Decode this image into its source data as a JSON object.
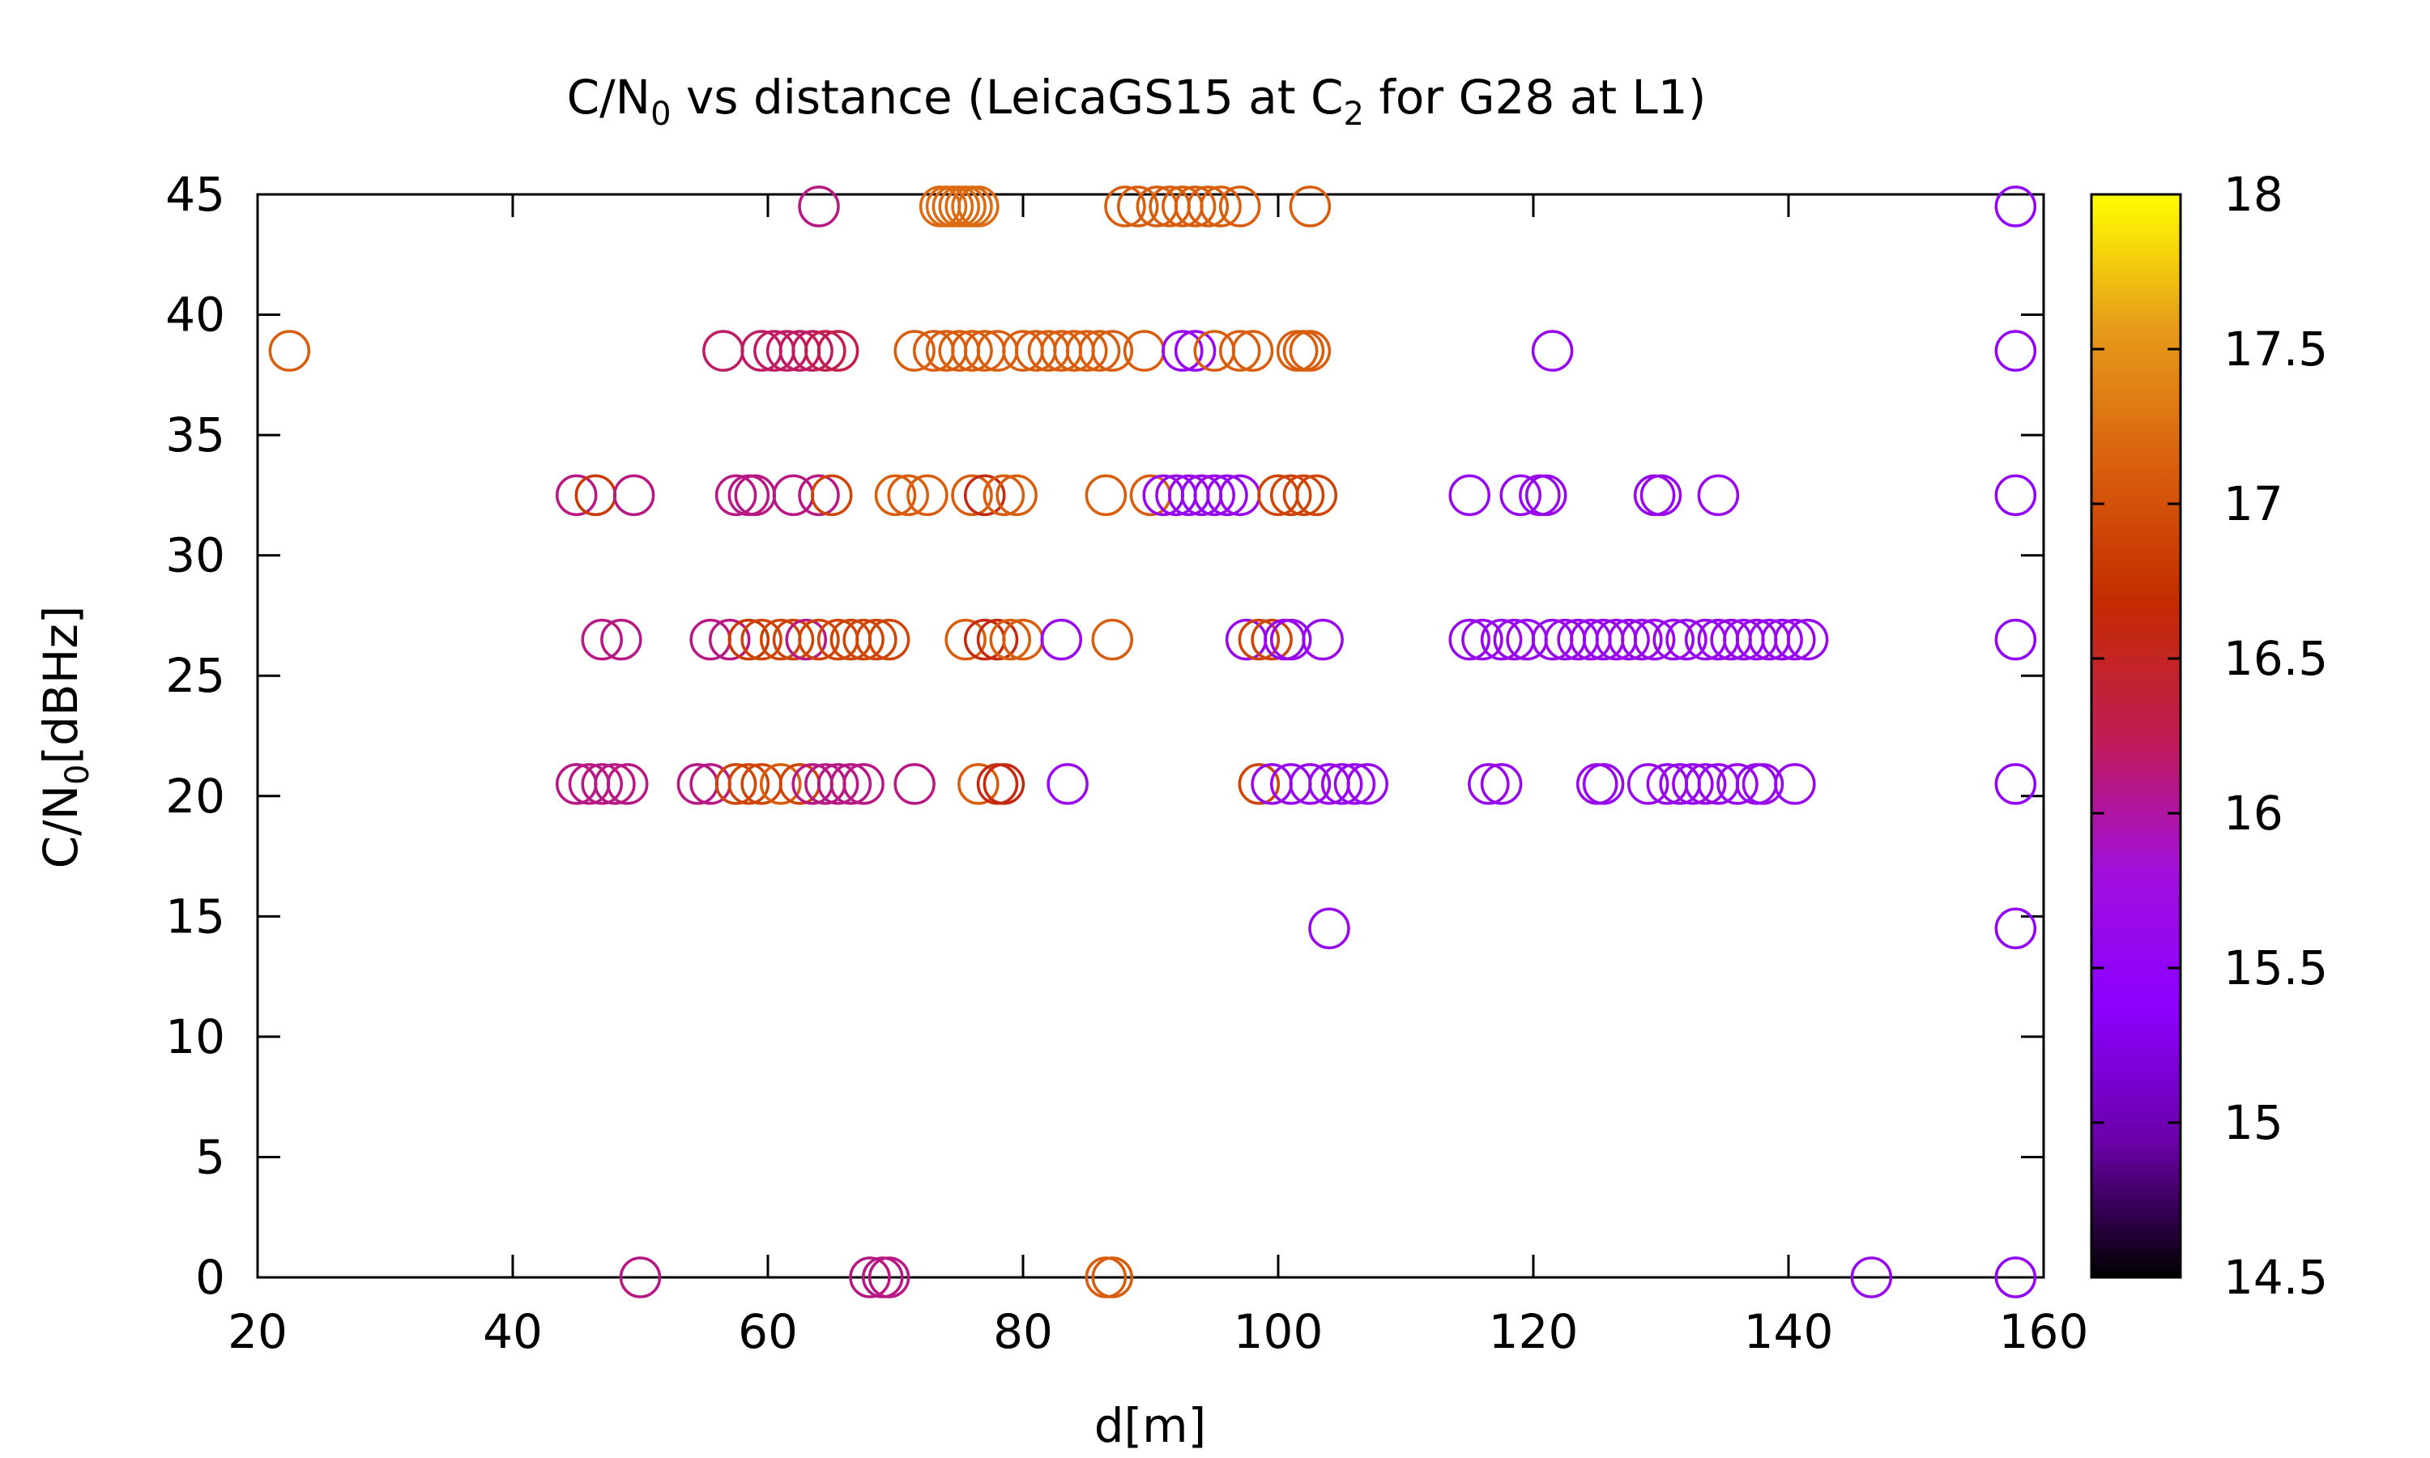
{
  "chart_data": {
    "type": "scatter",
    "title": {
      "prefix": "C/N",
      "sub1": "0",
      "middle": " vs distance (LeicaGS15 at C",
      "sub2": "2",
      "suffix": " for G28 at L1)"
    },
    "xlabel": "d[m]",
    "ylabel": {
      "prefix": "C/N",
      "sub": "0",
      "suffix": "[dBHz]"
    },
    "xlim": [
      20,
      160
    ],
    "ylim": [
      0,
      45
    ],
    "xticks": [
      20,
      40,
      60,
      80,
      100,
      120,
      140,
      160
    ],
    "yticks": [
      0,
      5,
      10,
      15,
      20,
      25,
      30,
      35,
      40,
      45
    ],
    "marker": "open-circle",
    "grid": false,
    "colorbar": {
      "range": [
        14.5,
        18
      ],
      "ticks": [
        "14.5",
        "15",
        "15.5",
        "16",
        "16.5",
        "17",
        "17.5",
        "18"
      ],
      "colormap": [
        "#000000",
        "#6a00a8",
        "#8c00ff",
        "#a10fdc",
        "#c31c54",
        "#c42c00",
        "#d9600e",
        "#e69a1a",
        "#ffff00"
      ]
    },
    "points": [
      {
        "x": 22.5,
        "y": 38.5,
        "c": 17.1
      },
      {
        "x": 64,
        "y": 44.5,
        "c": 16.1
      },
      {
        "x": 73.5,
        "y": 44.5,
        "c": 17.2
      },
      {
        "x": 74,
        "y": 44.5,
        "c": 17.2
      },
      {
        "x": 74.5,
        "y": 44.5,
        "c": 17.2
      },
      {
        "x": 75,
        "y": 44.5,
        "c": 17.2
      },
      {
        "x": 75.5,
        "y": 44.5,
        "c": 17.2
      },
      {
        "x": 76,
        "y": 44.5,
        "c": 17.2
      },
      {
        "x": 76.5,
        "y": 44.5,
        "c": 17.2
      },
      {
        "x": 88,
        "y": 44.5,
        "c": 17.1
      },
      {
        "x": 89,
        "y": 44.5,
        "c": 17.1
      },
      {
        "x": 90.5,
        "y": 44.5,
        "c": 17.1
      },
      {
        "x": 91.5,
        "y": 44.5,
        "c": 17.1
      },
      {
        "x": 92.5,
        "y": 44.5,
        "c": 17.1
      },
      {
        "x": 93.5,
        "y": 44.5,
        "c": 17.1
      },
      {
        "x": 94.5,
        "y": 44.5,
        "c": 17.1
      },
      {
        "x": 95.5,
        "y": 44.5,
        "c": 17.1
      },
      {
        "x": 97,
        "y": 44.5,
        "c": 17.1
      },
      {
        "x": 102.5,
        "y": 44.5,
        "c": 17.1
      },
      {
        "x": 157.8,
        "y": 44.5,
        "c": 15.5
      },
      {
        "x": 56.5,
        "y": 38.5,
        "c": 16.2
      },
      {
        "x": 59.5,
        "y": 38.5,
        "c": 16.2
      },
      {
        "x": 60.5,
        "y": 38.5,
        "c": 16.2
      },
      {
        "x": 61.5,
        "y": 38.5,
        "c": 16.2
      },
      {
        "x": 62.5,
        "y": 38.5,
        "c": 16.2
      },
      {
        "x": 63.5,
        "y": 38.5,
        "c": 16.2
      },
      {
        "x": 64.5,
        "y": 38.5,
        "c": 16.3
      },
      {
        "x": 65.5,
        "y": 38.5,
        "c": 16.3
      },
      {
        "x": 71.5,
        "y": 38.5,
        "c": 17.1
      },
      {
        "x": 73,
        "y": 38.5,
        "c": 17.1
      },
      {
        "x": 74,
        "y": 38.5,
        "c": 17.1
      },
      {
        "x": 75,
        "y": 38.5,
        "c": 17.1
      },
      {
        "x": 76,
        "y": 38.5,
        "c": 17.1
      },
      {
        "x": 77,
        "y": 38.5,
        "c": 17.1
      },
      {
        "x": 78,
        "y": 38.5,
        "c": 17.1
      },
      {
        "x": 80,
        "y": 38.5,
        "c": 17.1
      },
      {
        "x": 81,
        "y": 38.5,
        "c": 17.1
      },
      {
        "x": 82,
        "y": 38.5,
        "c": 17.1
      },
      {
        "x": 83,
        "y": 38.5,
        "c": 17.1
      },
      {
        "x": 84,
        "y": 38.5,
        "c": 17.1
      },
      {
        "x": 85,
        "y": 38.5,
        "c": 17.1
      },
      {
        "x": 86,
        "y": 38.5,
        "c": 17.1
      },
      {
        "x": 87,
        "y": 38.5,
        "c": 17.1
      },
      {
        "x": 89.5,
        "y": 38.5,
        "c": 17.1
      },
      {
        "x": 92.5,
        "y": 38.5,
        "c": 15.6
      },
      {
        "x": 93.5,
        "y": 38.5,
        "c": 15.6
      },
      {
        "x": 95,
        "y": 38.5,
        "c": 17.1
      },
      {
        "x": 97,
        "y": 38.5,
        "c": 17.1
      },
      {
        "x": 98,
        "y": 38.5,
        "c": 17.1
      },
      {
        "x": 101.5,
        "y": 38.5,
        "c": 17.1
      },
      {
        "x": 102,
        "y": 38.5,
        "c": 17.1
      },
      {
        "x": 102.5,
        "y": 38.5,
        "c": 17.1
      },
      {
        "x": 121.5,
        "y": 38.5,
        "c": 15.6
      },
      {
        "x": 157.8,
        "y": 38.5,
        "c": 15.5
      },
      {
        "x": 45,
        "y": 32.5,
        "c": 16.1
      },
      {
        "x": 46.5,
        "y": 32.5,
        "c": 16.8
      },
      {
        "x": 49.5,
        "y": 32.5,
        "c": 16.1
      },
      {
        "x": 57.5,
        "y": 32.5,
        "c": 16.1
      },
      {
        "x": 58.5,
        "y": 32.5,
        "c": 16.1
      },
      {
        "x": 59,
        "y": 32.5,
        "c": 16.1
      },
      {
        "x": 62,
        "y": 32.5,
        "c": 16.1
      },
      {
        "x": 64,
        "y": 32.5,
        "c": 16.1
      },
      {
        "x": 65,
        "y": 32.5,
        "c": 16.9
      },
      {
        "x": 70,
        "y": 32.5,
        "c": 17.1
      },
      {
        "x": 71,
        "y": 32.5,
        "c": 17.1
      },
      {
        "x": 72.5,
        "y": 32.5,
        "c": 17.1
      },
      {
        "x": 76,
        "y": 32.5,
        "c": 17.1
      },
      {
        "x": 77,
        "y": 32.5,
        "c": 16.6
      },
      {
        "x": 78.5,
        "y": 32.5,
        "c": 17.1
      },
      {
        "x": 79.5,
        "y": 32.5,
        "c": 17.1
      },
      {
        "x": 86.5,
        "y": 32.5,
        "c": 17.1
      },
      {
        "x": 90,
        "y": 32.5,
        "c": 17.1
      },
      {
        "x": 91,
        "y": 32.5,
        "c": 15.6
      },
      {
        "x": 92,
        "y": 32.5,
        "c": 15.6
      },
      {
        "x": 93,
        "y": 32.5,
        "c": 15.6
      },
      {
        "x": 94,
        "y": 32.5,
        "c": 15.6
      },
      {
        "x": 95,
        "y": 32.5,
        "c": 15.6
      },
      {
        "x": 96,
        "y": 32.5,
        "c": 15.6
      },
      {
        "x": 97,
        "y": 32.5,
        "c": 15.6
      },
      {
        "x": 100,
        "y": 32.5,
        "c": 16.9
      },
      {
        "x": 101,
        "y": 32.5,
        "c": 16.9
      },
      {
        "x": 102,
        "y": 32.5,
        "c": 16.9
      },
      {
        "x": 103,
        "y": 32.5,
        "c": 16.9
      },
      {
        "x": 115,
        "y": 32.5,
        "c": 15.6
      },
      {
        "x": 119,
        "y": 32.5,
        "c": 15.6
      },
      {
        "x": 120.5,
        "y": 32.5,
        "c": 15.6
      },
      {
        "x": 121,
        "y": 32.5,
        "c": 15.6
      },
      {
        "x": 129.5,
        "y": 32.5,
        "c": 15.6
      },
      {
        "x": 130,
        "y": 32.5,
        "c": 15.6
      },
      {
        "x": 134.5,
        "y": 32.5,
        "c": 15.6
      },
      {
        "x": 157.8,
        "y": 32.5,
        "c": 15.5
      },
      {
        "x": 47,
        "y": 26.5,
        "c": 16.1
      },
      {
        "x": 48.5,
        "y": 26.5,
        "c": 16.1
      },
      {
        "x": 55.5,
        "y": 26.5,
        "c": 16.1
      },
      {
        "x": 57,
        "y": 26.5,
        "c": 16.1
      },
      {
        "x": 58.5,
        "y": 26.5,
        "c": 16.8
      },
      {
        "x": 59.5,
        "y": 26.5,
        "c": 16.9
      },
      {
        "x": 61,
        "y": 26.5,
        "c": 16.9
      },
      {
        "x": 62,
        "y": 26.5,
        "c": 16.9
      },
      {
        "x": 63,
        "y": 26.5,
        "c": 16.1
      },
      {
        "x": 64,
        "y": 26.5,
        "c": 16.9
      },
      {
        "x": 65.5,
        "y": 26.5,
        "c": 16.9
      },
      {
        "x": 66.5,
        "y": 26.5,
        "c": 16.9
      },
      {
        "x": 67.5,
        "y": 26.5,
        "c": 16.9
      },
      {
        "x": 68.5,
        "y": 26.5,
        "c": 16.9
      },
      {
        "x": 69.5,
        "y": 26.5,
        "c": 16.9
      },
      {
        "x": 75.5,
        "y": 26.5,
        "c": 17.1
      },
      {
        "x": 77,
        "y": 26.5,
        "c": 16.6
      },
      {
        "x": 78,
        "y": 26.5,
        "c": 16.6
      },
      {
        "x": 79,
        "y": 26.5,
        "c": 17.1
      },
      {
        "x": 80,
        "y": 26.5,
        "c": 17.1
      },
      {
        "x": 83,
        "y": 26.5,
        "c": 15.6
      },
      {
        "x": 87,
        "y": 26.5,
        "c": 17.1
      },
      {
        "x": 97.5,
        "y": 26.5,
        "c": 15.6
      },
      {
        "x": 98.5,
        "y": 26.5,
        "c": 16.9
      },
      {
        "x": 99.5,
        "y": 26.5,
        "c": 16.9
      },
      {
        "x": 100.5,
        "y": 26.5,
        "c": 15.6
      },
      {
        "x": 101,
        "y": 26.5,
        "c": 15.6
      },
      {
        "x": 103.5,
        "y": 26.5,
        "c": 15.6
      },
      {
        "x": 115,
        "y": 26.5,
        "c": 15.6
      },
      {
        "x": 116,
        "y": 26.5,
        "c": 15.6
      },
      {
        "x": 117.5,
        "y": 26.5,
        "c": 15.6
      },
      {
        "x": 118.5,
        "y": 26.5,
        "c": 15.6
      },
      {
        "x": 119.5,
        "y": 26.5,
        "c": 15.6
      },
      {
        "x": 121.5,
        "y": 26.5,
        "c": 15.6
      },
      {
        "x": 122.5,
        "y": 26.5,
        "c": 15.6
      },
      {
        "x": 123.5,
        "y": 26.5,
        "c": 15.6
      },
      {
        "x": 124.5,
        "y": 26.5,
        "c": 15.6
      },
      {
        "x": 125.5,
        "y": 26.5,
        "c": 15.6
      },
      {
        "x": 126.5,
        "y": 26.5,
        "c": 15.6
      },
      {
        "x": 127.5,
        "y": 26.5,
        "c": 15.6
      },
      {
        "x": 128.5,
        "y": 26.5,
        "c": 15.6
      },
      {
        "x": 129.5,
        "y": 26.5,
        "c": 15.6
      },
      {
        "x": 131,
        "y": 26.5,
        "c": 15.6
      },
      {
        "x": 132,
        "y": 26.5,
        "c": 15.6
      },
      {
        "x": 133.5,
        "y": 26.5,
        "c": 15.6
      },
      {
        "x": 134.5,
        "y": 26.5,
        "c": 15.6
      },
      {
        "x": 135.5,
        "y": 26.5,
        "c": 15.6
      },
      {
        "x": 136.5,
        "y": 26.5,
        "c": 15.6
      },
      {
        "x": 137.5,
        "y": 26.5,
        "c": 15.6
      },
      {
        "x": 138.5,
        "y": 26.5,
        "c": 15.6
      },
      {
        "x": 139.5,
        "y": 26.5,
        "c": 15.6
      },
      {
        "x": 140.5,
        "y": 26.5,
        "c": 15.6
      },
      {
        "x": 141.5,
        "y": 26.5,
        "c": 15.6
      },
      {
        "x": 157.8,
        "y": 26.5,
        "c": 15.5
      },
      {
        "x": 45,
        "y": 20.5,
        "c": 16.1
      },
      {
        "x": 46,
        "y": 20.5,
        "c": 16.1
      },
      {
        "x": 47,
        "y": 20.5,
        "c": 16.1
      },
      {
        "x": 48,
        "y": 20.5,
        "c": 16.1
      },
      {
        "x": 49,
        "y": 20.5,
        "c": 16.1
      },
      {
        "x": 54.5,
        "y": 20.5,
        "c": 16.1
      },
      {
        "x": 55.5,
        "y": 20.5,
        "c": 16.1
      },
      {
        "x": 57.5,
        "y": 20.5,
        "c": 16.9
      },
      {
        "x": 58.5,
        "y": 20.5,
        "c": 16.9
      },
      {
        "x": 59.5,
        "y": 20.5,
        "c": 16.9
      },
      {
        "x": 61,
        "y": 20.5,
        "c": 17.1
      },
      {
        "x": 62.5,
        "y": 20.5,
        "c": 16.9
      },
      {
        "x": 63.5,
        "y": 20.5,
        "c": 16.1
      },
      {
        "x": 64.5,
        "y": 20.5,
        "c": 16.1
      },
      {
        "x": 65.5,
        "y": 20.5,
        "c": 16.1
      },
      {
        "x": 66.5,
        "y": 20.5,
        "c": 16.1
      },
      {
        "x": 67.5,
        "y": 20.5,
        "c": 16.1
      },
      {
        "x": 71.5,
        "y": 20.5,
        "c": 16.1
      },
      {
        "x": 76.5,
        "y": 20.5,
        "c": 17.1
      },
      {
        "x": 78,
        "y": 20.5,
        "c": 16.6
      },
      {
        "x": 78.5,
        "y": 20.5,
        "c": 16.6
      },
      {
        "x": 83.5,
        "y": 20.5,
        "c": 15.6
      },
      {
        "x": 98.5,
        "y": 20.5,
        "c": 16.9
      },
      {
        "x": 99.5,
        "y": 20.5,
        "c": 15.6
      },
      {
        "x": 101,
        "y": 20.5,
        "c": 15.6
      },
      {
        "x": 102.5,
        "y": 20.5,
        "c": 15.6
      },
      {
        "x": 104,
        "y": 20.5,
        "c": 15.6
      },
      {
        "x": 105,
        "y": 20.5,
        "c": 15.6
      },
      {
        "x": 106,
        "y": 20.5,
        "c": 15.6
      },
      {
        "x": 107,
        "y": 20.5,
        "c": 15.6
      },
      {
        "x": 116.5,
        "y": 20.5,
        "c": 15.6
      },
      {
        "x": 117.5,
        "y": 20.5,
        "c": 15.6
      },
      {
        "x": 125,
        "y": 20.5,
        "c": 15.6
      },
      {
        "x": 125.5,
        "y": 20.5,
        "c": 15.6
      },
      {
        "x": 129,
        "y": 20.5,
        "c": 15.6
      },
      {
        "x": 130.5,
        "y": 20.5,
        "c": 15.6
      },
      {
        "x": 131.5,
        "y": 20.5,
        "c": 15.6
      },
      {
        "x": 132.5,
        "y": 20.5,
        "c": 15.6
      },
      {
        "x": 133.5,
        "y": 20.5,
        "c": 15.6
      },
      {
        "x": 134.5,
        "y": 20.5,
        "c": 15.6
      },
      {
        "x": 136,
        "y": 20.5,
        "c": 15.6
      },
      {
        "x": 137.5,
        "y": 20.5,
        "c": 15.6
      },
      {
        "x": 138,
        "y": 20.5,
        "c": 15.6
      },
      {
        "x": 140.5,
        "y": 20.5,
        "c": 15.6
      },
      {
        "x": 157.8,
        "y": 20.5,
        "c": 15.5
      },
      {
        "x": 104,
        "y": 14.5,
        "c": 15.6
      },
      {
        "x": 157.8,
        "y": 14.5,
        "c": 15.5
      },
      {
        "x": 50,
        "y": 0,
        "c": 16.1
      },
      {
        "x": 68,
        "y": 0,
        "c": 16.1
      },
      {
        "x": 69,
        "y": 0,
        "c": 16.1
      },
      {
        "x": 69.5,
        "y": 0,
        "c": 16.1
      },
      {
        "x": 86.5,
        "y": 0,
        "c": 17.1
      },
      {
        "x": 87,
        "y": 0,
        "c": 17.1
      },
      {
        "x": 146.5,
        "y": 0,
        "c": 15.6
      },
      {
        "x": 157.8,
        "y": 0,
        "c": 15.5
      }
    ]
  }
}
